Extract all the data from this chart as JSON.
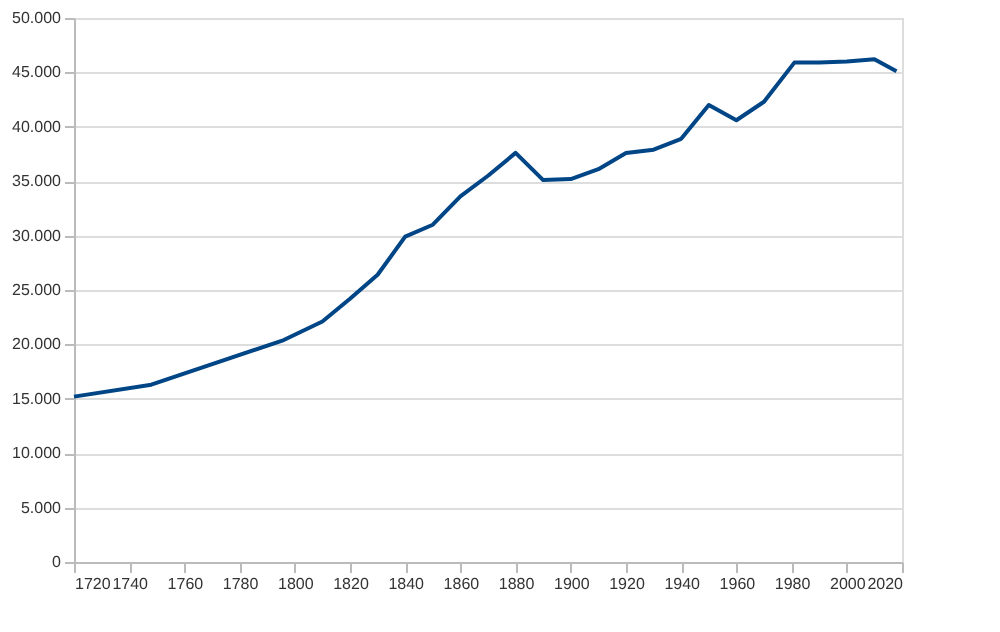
{
  "chart_data": {
    "type": "line",
    "x": [
      1720,
      1748,
      1796,
      1810,
      1820,
      1830,
      1840,
      1850,
      1860,
      1870,
      1880,
      1890,
      1900,
      1910,
      1920,
      1930,
      1940,
      1950,
      1960,
      1970,
      1981,
      1990,
      2000,
      2010,
      2018
    ],
    "series": [
      {
        "color": "#004586",
        "values": [
          15200,
          16300,
          20400,
          22100,
          24200,
          26400,
          29900,
          31000,
          33600,
          35500,
          37600,
          35100,
          35200,
          36100,
          37600,
          37900,
          38900,
          42000,
          40600,
          42300,
          45900,
          45900,
          46000,
          46200,
          45100
        ]
      }
    ],
    "xlim": [
      1720,
      2020
    ],
    "xticks": [
      1720,
      1740,
      1760,
      1780,
      1800,
      1820,
      1840,
      1860,
      1880,
      1900,
      1920,
      1940,
      1960,
      1980,
      2000,
      2020
    ],
    "ylim": [
      0,
      50000
    ],
    "yticks": [
      0,
      {
        "value": 5000,
        "label": "5.000"
      },
      {
        "value": 10000,
        "label": "10.000"
      },
      {
        "value": 15000,
        "label": "15.000"
      },
      {
        "value": 20000,
        "label": "20.000"
      },
      {
        "value": 25000,
        "label": "25.000"
      },
      {
        "value": 30000,
        "label": "30.000"
      },
      {
        "value": 35000,
        "label": "35.000"
      },
      {
        "value": 40000,
        "label": "40.000"
      },
      {
        "value": 45000,
        "label": "45.000"
      },
      {
        "value": 50000,
        "label": "50.000"
      }
    ],
    "grid": "y",
    "marker": "none",
    "line_style": "solid"
  }
}
